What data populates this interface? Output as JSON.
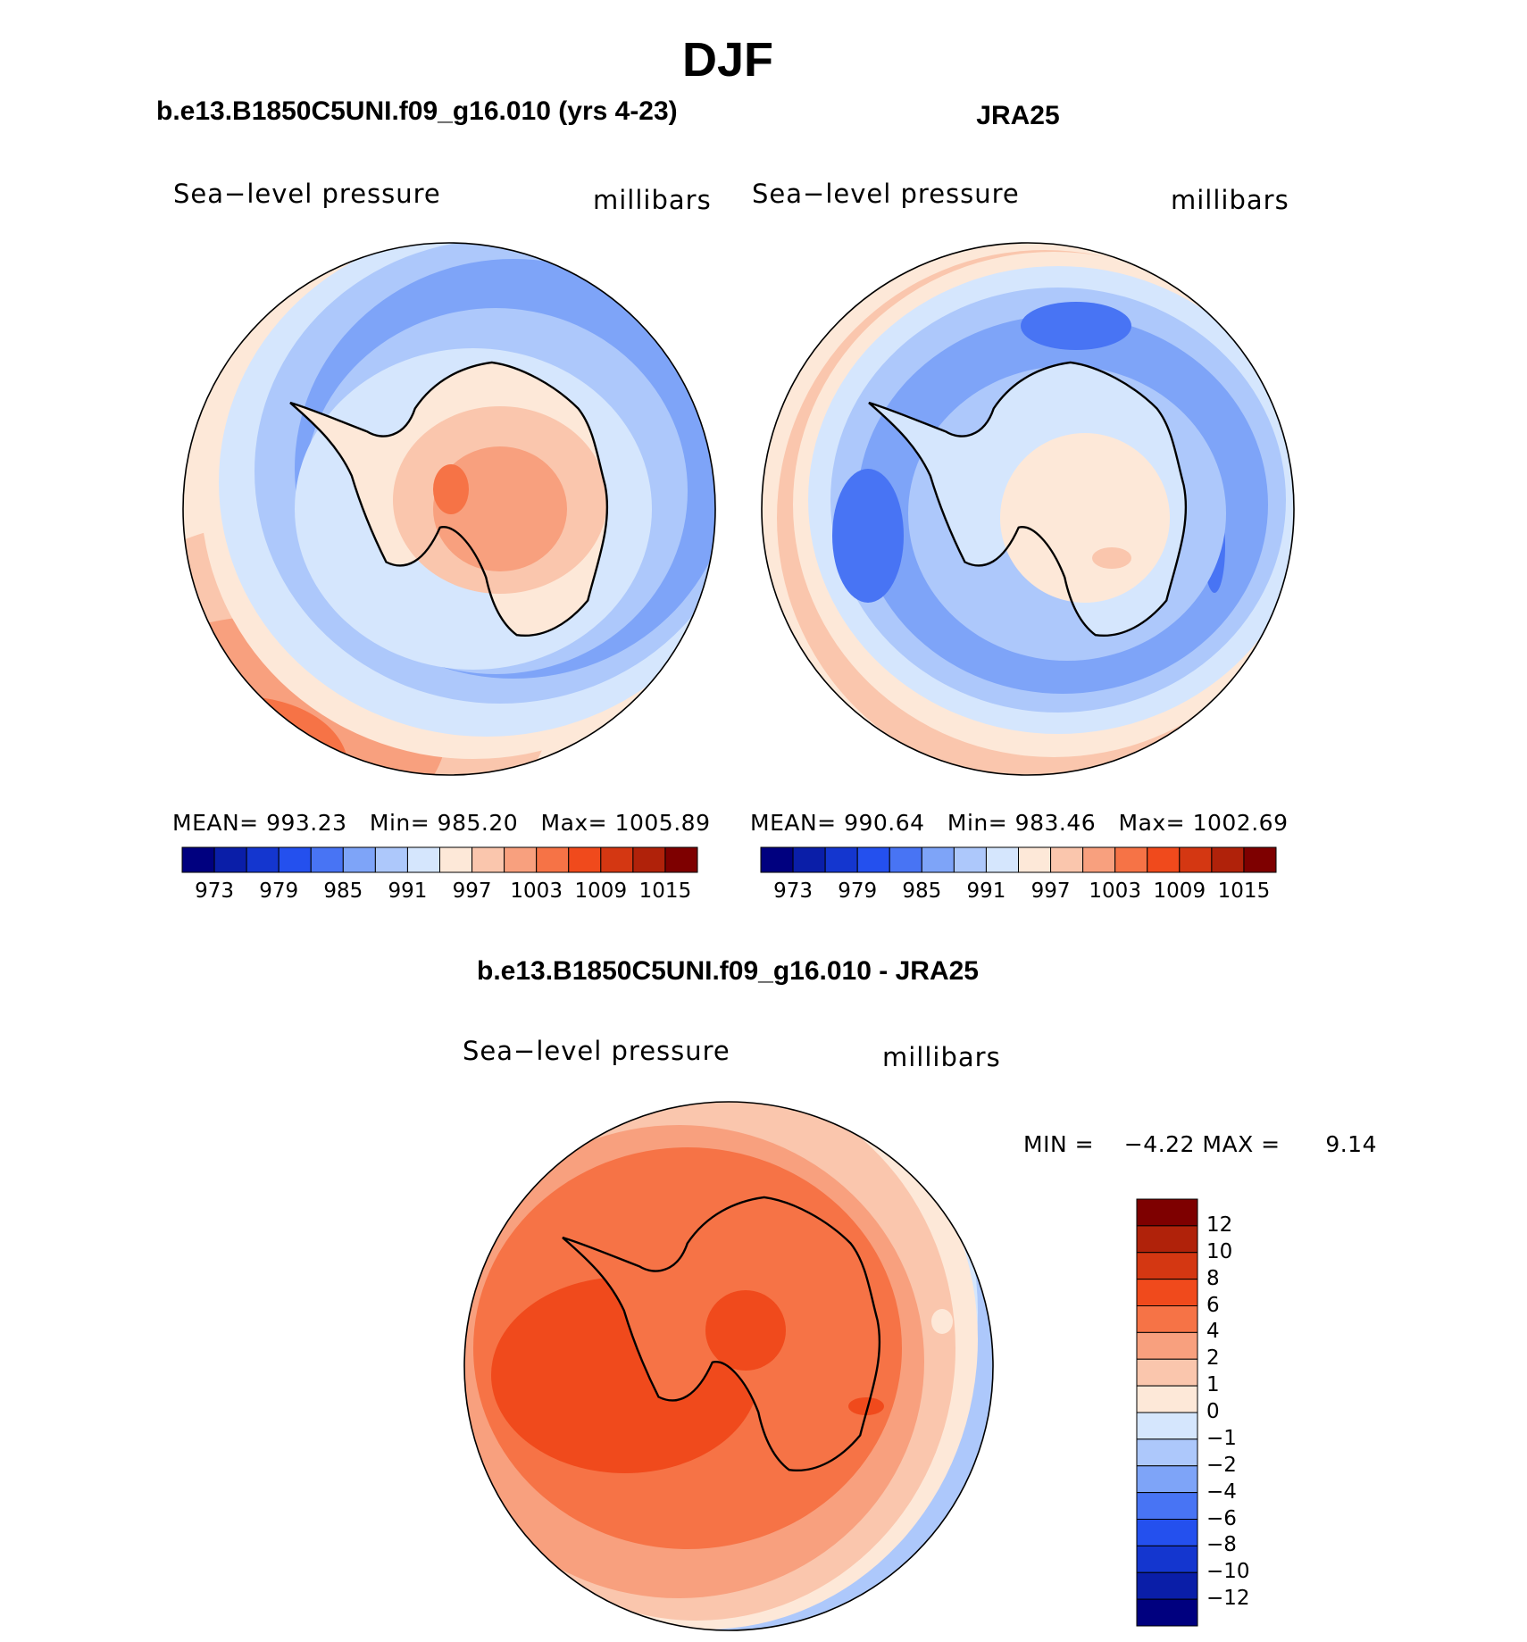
{
  "figure": {
    "title": "DJF",
    "panels": [
      {
        "title": "b.e13.B1850C5UNI.f09_g16.010 (yrs 4-23)",
        "variable": "Sea−level pressure",
        "units": "millibars",
        "mean_label": "MEAN=",
        "mean": "993.23",
        "min_label": "Min=",
        "min": "985.20",
        "max_label": "Max=",
        "max": "1005.89"
      },
      {
        "title": "JRA25",
        "variable": "Sea−level pressure",
        "units": "millibars",
        "mean_label": "MEAN=",
        "mean": "990.64",
        "min_label": "Min=",
        "min": "983.46",
        "max_label": "Max=",
        "max": "1002.69"
      }
    ],
    "difference": {
      "title": "b.e13.B1850C5UNI.f09_g16.010 - JRA25",
      "variable": "Sea−level pressure",
      "units": "millibars",
      "min_label": "MIN =",
      "min": "−4.22",
      "max_label": "MAX =",
      "max": "9.14"
    }
  },
  "colorbars": {
    "field": {
      "colors": [
        "#00007f",
        "#0a1ea8",
        "#1436cf",
        "#2450ee",
        "#4874f4",
        "#7ea4f8",
        "#adc8fb",
        "#d5e6fd",
        "#fde8d8",
        "#fac6ad",
        "#f8a07e",
        "#f67346",
        "#f04a1c",
        "#d43712",
        "#b0220a",
        "#7e0000"
      ],
      "tick_labels": [
        "973",
        "979",
        "985",
        "991",
        "997",
        "1003",
        "1009",
        "1015"
      ]
    },
    "difference": {
      "colors": [
        "#7e0000",
        "#b0220a",
        "#d43712",
        "#f04a1c",
        "#f67346",
        "#f8a07e",
        "#fac6ad",
        "#fde8d8",
        "#d5e6fd",
        "#adc8fb",
        "#7ea4f8",
        "#4874f4",
        "#2450ee",
        "#1436cf",
        "#0a1ea8",
        "#00007f"
      ],
      "tick_labels": [
        "12",
        "10",
        "8",
        "6",
        "4",
        "2",
        "1",
        "0",
        "−1",
        "−2",
        "−4",
        "−6",
        "−8",
        "−10",
        "−12"
      ]
    }
  }
}
